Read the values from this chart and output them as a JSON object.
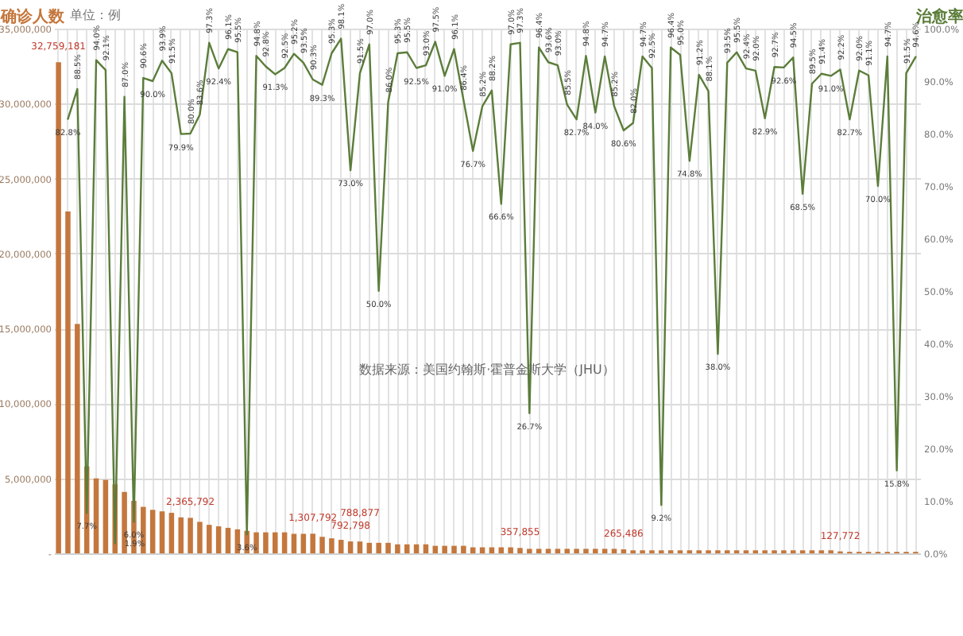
{
  "chart_data": {
    "type": "bar",
    "ylabel": "确诊人数",
    "y2label": "治愈率",
    "annotations": [
      "单位：例",
      "数据来源：美国约翰斯·霍普金斯大学（JHU）"
    ],
    "categories": [
      null,
      null,
      null,
      null,
      null,
      null,
      null,
      null,
      null,
      null,
      null,
      null,
      null,
      null,
      null,
      null,
      null,
      null,
      null,
      null,
      null,
      null,
      null,
      null,
      null,
      null,
      null,
      null,
      null,
      null,
      null,
      null,
      null,
      null,
      null,
      null,
      null,
      null,
      null,
      null,
      null,
      null,
      null,
      null,
      null,
      null,
      null,
      null,
      null,
      null,
      null,
      null,
      null,
      null,
      null,
      null,
      null,
      null,
      null,
      null,
      null,
      null,
      null,
      null,
      null,
      null,
      null,
      null,
      null,
      null,
      null,
      null,
      null,
      null,
      null,
      null,
      null,
      null,
      null,
      null,
      null,
      null,
      null,
      null,
      null,
      null,
      null,
      null,
      null,
      null,
      null,
      null
    ],
    "series": [
      {
        "color": "#c4773d",
        "values": [
          32759181,
          22800000,
          15300000,
          5800000,
          5000000,
          4900000,
          4600000,
          4100000,
          3500000,
          3100000,
          2900000,
          2800000,
          2700000,
          2400000,
          2365792,
          2100000,
          1900000,
          1800000,
          1700000,
          1600000,
          1500000,
          1400000,
          1400000,
          1400000,
          1400000,
          1300000,
          1300000,
          1307792,
          1100000,
          1000000,
          900000,
          792798,
          788877,
          700000,
          700000,
          700000,
          600000,
          600000,
          600000,
          600000,
          500000,
          500000,
          500000,
          500000,
          400000,
          400000,
          400000,
          400000,
          400000,
          357855,
          300000,
          300000,
          300000,
          300000,
          300000,
          300000,
          300000,
          300000,
          300000,
          300000,
          265486,
          200000,
          200000,
          200000,
          200000,
          200000,
          200000,
          200000,
          200000,
          200000,
          200000,
          200000,
          200000,
          200000,
          200000,
          200000,
          200000,
          200000,
          200000,
          200000,
          200000,
          200000,
          200000,
          127772,
          100000,
          100000,
          100000,
          100000,
          100000,
          100000,
          100000,
          100000
        ],
        "value_labels": [
          "32,759,181",
          null,
          null,
          null,
          null,
          null,
          null,
          null,
          null,
          null,
          null,
          null,
          null,
          null,
          "2,365,792",
          null,
          null,
          null,
          null,
          null,
          null,
          null,
          null,
          null,
          null,
          null,
          null,
          "1,307,792",
          null,
          null,
          null,
          "792,798",
          "788,877",
          null,
          null,
          null,
          null,
          null,
          null,
          null,
          null,
          null,
          null,
          null,
          null,
          null,
          null,
          null,
          null,
          "357,855",
          null,
          null,
          null,
          null,
          null,
          null,
          null,
          null,
          null,
          null,
          "265,486",
          null,
          null,
          null,
          null,
          null,
          null,
          null,
          null,
          null,
          null,
          null,
          null,
          null,
          null,
          null,
          null,
          null,
          null,
          null,
          null,
          null,
          null,
          "127,772",
          null,
          null,
          null,
          null,
          null,
          null,
          null,
          null
        ]
      },
      {
        "type": "line",
        "axis": "y2",
        "color": "#5b7d3a",
        "values": [
          null,
          82.8,
          88.5,
          7.7,
          94.0,
          92.1,
          1.9,
          87.0,
          6.0,
          90.6,
          90.0,
          93.9,
          91.5,
          79.9,
          80.0,
          83.6,
          97.3,
          92.4,
          96.1,
          95.5,
          3.6,
          94.8,
          92.8,
          91.3,
          92.5,
          95.2,
          93.5,
          90.3,
          89.3,
          95.3,
          98.1,
          73.0,
          91.5,
          97.0,
          50.0,
          86.0,
          95.3,
          95.5,
          92.5,
          93.0,
          97.5,
          91.0,
          96.1,
          86.4,
          76.7,
          85.2,
          88.2,
          66.6,
          97.0,
          97.3,
          26.7,
          96.4,
          93.6,
          93.0,
          85.5,
          82.7,
          94.8,
          84.0,
          94.7,
          85.2,
          80.6,
          82.0,
          94.7,
          92.5,
          9.2,
          96.4,
          95.0,
          74.8,
          91.2,
          88.1,
          38.0,
          93.5,
          95.5,
          92.4,
          92.0,
          82.9,
          92.7,
          92.6,
          94.5,
          68.5,
          89.5,
          91.4,
          91.0,
          92.2,
          82.7,
          92.0,
          91.1,
          70.0,
          94.7,
          15.8,
          91.5,
          94.6
        ],
        "value_labels": [
          null,
          "82.8%",
          "88.5%",
          "7.7%",
          "94.0%",
          "92.1%",
          "1.9%",
          "87.0%",
          "6.0%",
          "90.6%",
          "90.0%",
          "93.9%",
          "91.5%",
          "79.9%",
          "80.0%",
          "83.6%",
          "97.3%",
          "92.4%",
          "96.1%",
          "95.5%",
          "3.6%",
          "94.8%",
          "92.8%",
          "91.3%",
          "92.5%",
          "95.2%",
          "93.5%",
          "90.3%",
          "89.3%",
          "95.3%",
          "98.1%",
          "73.0%",
          "91.5%",
          "97.0%",
          "50.0%",
          "86.0%",
          "95.3%",
          "95.5%",
          "92.5%",
          "93.0%",
          "97.5%",
          "91.0%",
          "96.1%",
          "86.4%",
          "76.7%",
          "85.2%",
          "88.2%",
          "66.6%",
          "97.0%",
          "97.3%",
          "26.7%",
          "96.4%",
          "93.6%",
          "93.0%",
          "85.5%",
          "82.7%",
          "94.8%",
          "84.0%",
          "94.7%",
          "85.2%",
          "80.6%",
          "82.0%",
          "94.7%",
          "92.5%",
          "9.2%",
          "96.4%",
          "95.0%",
          "74.8%",
          "91.2%",
          "88.1%",
          "38.0%",
          "93.5%",
          "95.5%",
          "92.4%",
          "92.0%",
          "82.9%",
          "92.7%",
          "92.6%",
          "94.5%",
          "68.5%",
          "89.5%",
          "91.4%",
          "91.0%",
          "92.2%",
          "82.7%",
          "92.0%",
          "91.1%",
          "70.0%",
          "94.7%",
          "15.8%",
          "91.5%",
          "94.6%"
        ]
      }
    ],
    "ylim": [
      0,
      35000000
    ],
    "yticks": [
      {
        "value": 0,
        "label": "-"
      },
      {
        "value": 5000000,
        "label": "5,000,000"
      },
      {
        "value": 10000000,
        "label": "10,000,000"
      },
      {
        "value": 15000000,
        "label": "15,000,000"
      },
      {
        "value": 20000000,
        "label": "20,000,000"
      },
      {
        "value": 25000000,
        "label": "25,000,000"
      },
      {
        "value": 30000000,
        "label": "30,000,000"
      },
      {
        "value": 35000000,
        "label": "35,000,000"
      }
    ],
    "y2lim": [
      0,
      100
    ],
    "y2ticks": [
      {
        "value": 0,
        "label": "0.0%"
      },
      {
        "value": 10,
        "label": "10.0%"
      },
      {
        "value": 20,
        "label": "20.0%"
      },
      {
        "value": 30,
        "label": "30.0%"
      },
      {
        "value": 40,
        "label": "40.0%"
      },
      {
        "value": 50,
        "label": "50.0%"
      },
      {
        "value": 60,
        "label": "60.0%"
      },
      {
        "value": 70,
        "label": "70.0%"
      },
      {
        "value": 80,
        "label": "80.0%"
      },
      {
        "value": 90,
        "label": "90.0%"
      },
      {
        "value": 100,
        "label": "100.0%"
      }
    ],
    "grid": true
  }
}
